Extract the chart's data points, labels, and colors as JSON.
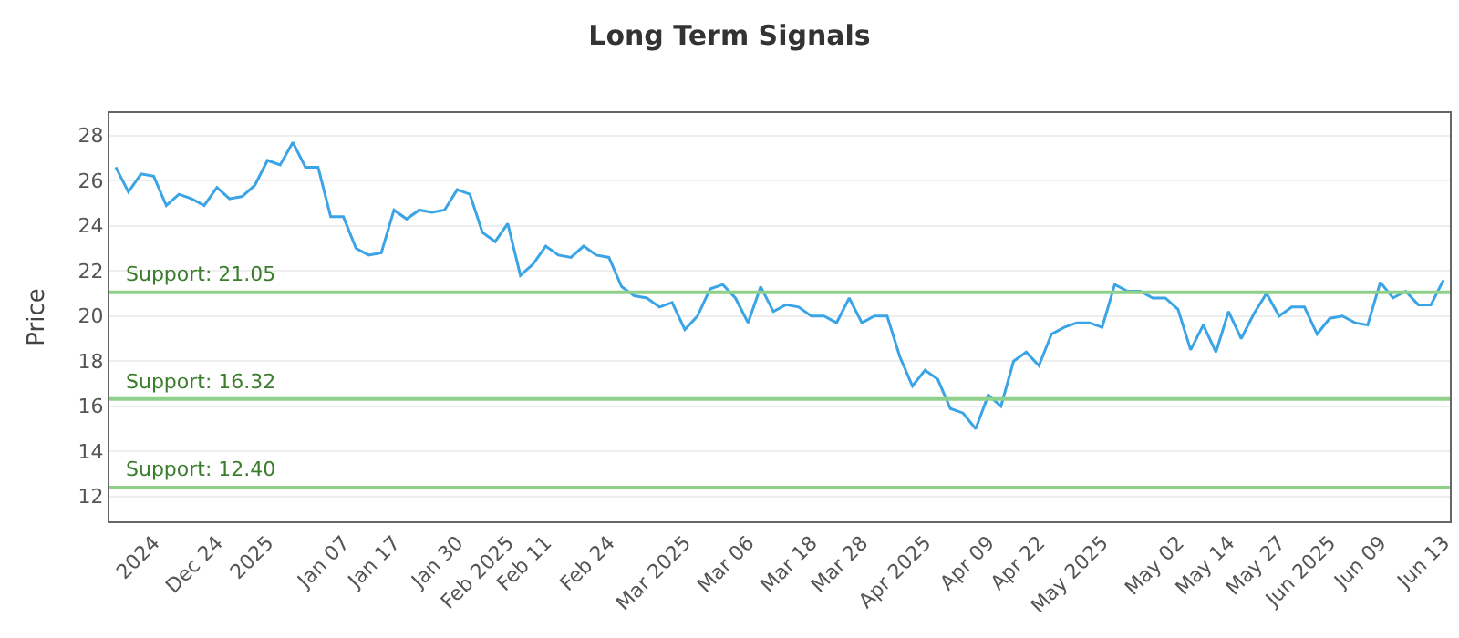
{
  "chart_data": {
    "type": "line",
    "title": "Long Term Signals",
    "ylabel": "Price",
    "categories": [
      null,
      null,
      null,
      "2024",
      null,
      null,
      null,
      null,
      "Dec 24",
      null,
      null,
      null,
      "2025",
      null,
      null,
      null,
      null,
      null,
      "Jan 07",
      null,
      null,
      null,
      "Jan 17",
      null,
      null,
      null,
      null,
      "Jan 30",
      null,
      null,
      null,
      "Feb 2025",
      null,
      null,
      "Feb 11",
      null,
      null,
      null,
      null,
      "Feb 24",
      null,
      null,
      null,
      null,
      null,
      "Mar 2025",
      null,
      null,
      null,
      null,
      "Mar 06",
      null,
      null,
      null,
      null,
      "Mar 18",
      null,
      null,
      null,
      "Mar 28",
      null,
      null,
      null,
      null,
      "Apr 2025",
      null,
      null,
      null,
      null,
      "Apr 09",
      null,
      null,
      null,
      "Apr 22",
      null,
      null,
      null,
      null,
      "May 2025",
      null,
      null,
      null,
      null,
      null,
      "May 02",
      null,
      null,
      null,
      "May 14",
      null,
      null,
      null,
      "May 27",
      null,
      null,
      null,
      "Jun 2025",
      null,
      null,
      null,
      "Jun 09",
      null,
      null,
      null,
      null,
      "Jun 13"
    ],
    "series": [
      {
        "color": "#3ba4e6",
        "values": [
          26.6,
          25.5,
          26.3,
          26.2,
          24.9,
          25.4,
          25.2,
          24.9,
          25.7,
          25.2,
          25.3,
          25.8,
          26.9,
          26.7,
          27.7,
          26.6,
          26.6,
          24.4,
          24.4,
          23.0,
          22.7,
          22.8,
          24.7,
          24.3,
          24.7,
          24.6,
          24.7,
          25.6,
          25.4,
          23.7,
          23.3,
          24.1,
          21.8,
          22.3,
          23.1,
          22.7,
          22.6,
          23.1,
          22.7,
          22.6,
          21.3,
          20.9,
          20.8,
          20.4,
          20.6,
          19.4,
          20.0,
          21.2,
          21.4,
          20.8,
          19.7,
          21.3,
          20.2,
          20.5,
          20.4,
          20.0,
          20.0,
          19.7,
          20.8,
          19.7,
          20.0,
          20.0,
          18.2,
          16.9,
          17.6,
          17.2,
          15.9,
          15.7,
          15.0,
          16.5,
          16.0,
          18.0,
          18.4,
          17.8,
          19.2,
          19.5,
          19.7,
          19.7,
          19.5,
          21.4,
          21.1,
          21.1,
          20.8,
          20.8,
          20.3,
          18.5,
          19.6,
          18.4,
          20.2,
          19.0,
          20.1,
          21.0,
          20.0,
          20.4,
          20.4,
          19.2,
          19.9,
          20.0,
          19.7,
          19.6,
          21.5,
          20.8,
          21.1,
          20.5,
          20.5,
          21.6
        ]
      }
    ],
    "ylim": [
      10.9,
      29
    ],
    "yticks": [
      12,
      14,
      16,
      18,
      20,
      22,
      24,
      26,
      28
    ],
    "ref_lines": [
      {
        "axis": "y",
        "value": 21.05,
        "label": "Support: 21.05",
        "color": "#8fd08a"
      },
      {
        "axis": "y",
        "value": 16.32,
        "label": "Support: 16.32",
        "color": "#8fd08a"
      },
      {
        "axis": "y",
        "value": 12.4,
        "label": "Support: 12.40",
        "color": "#8fd08a"
      }
    ],
    "grid": "y",
    "marker": "none",
    "line_style": "solid"
  }
}
